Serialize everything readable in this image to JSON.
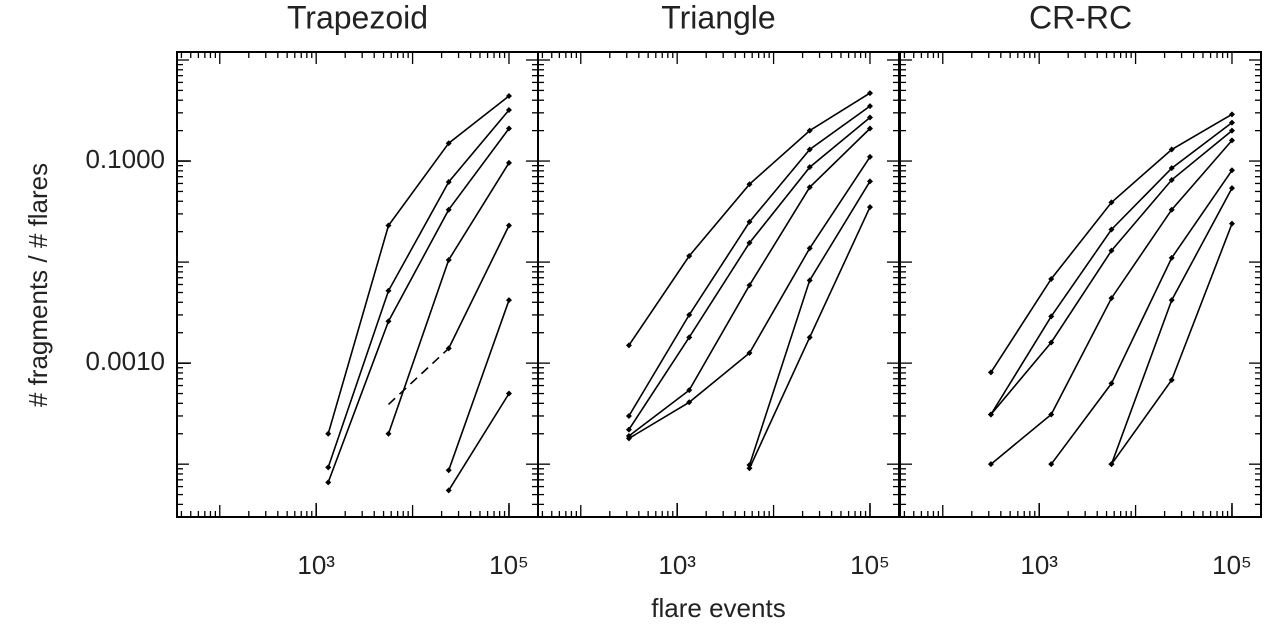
{
  "chart_data": [
    {
      "type": "line",
      "title": "Trapezoid",
      "log_x": true,
      "log_y": true,
      "color": "#000000",
      "ylabel": "# fragments / # flares",
      "xlim": [
        36,
        200000
      ],
      "ylim": [
        3e-05,
        1.2
      ],
      "xticks": [
        {
          "value": 1000,
          "label": "10³"
        },
        {
          "value": 100000,
          "label": "10⁵"
        }
      ],
      "yticks": [
        {
          "value": 0.1,
          "label": "0.1000"
        },
        {
          "value": 0.001,
          "label": "0.0010"
        }
      ],
      "x": [
        1333,
        5623,
        23714,
        100000
      ],
      "series": [
        {
          "values": [
            0.0002,
            0.023,
            0.15,
            0.44
          ]
        },
        {
          "values": [
            9.3e-05,
            0.0052,
            0.062,
            0.32
          ]
        },
        {
          "values": [
            6.6e-05,
            0.0026,
            0.033,
            0.21
          ]
        },
        {
          "values": [
            null,
            0.0002,
            0.0105,
            0.096
          ]
        },
        {
          "values": [
            null,
            0.00039,
            0.0014,
            null
          ],
          "dashed": true
        },
        {
          "values": [
            null,
            null,
            0.0014,
            0.023
          ]
        },
        {
          "values": [
            null,
            null,
            8.7e-05,
            0.0042
          ]
        },
        {
          "values": [
            null,
            null,
            5.5e-05,
            0.0005
          ]
        }
      ]
    },
    {
      "type": "line",
      "title": "Triangle",
      "log_x": true,
      "log_y": true,
      "color": "#000000",
      "xlabel": "flare events",
      "xlim": [
        36,
        200000
      ],
      "ylim": [
        3e-05,
        1.2
      ],
      "xticks": [
        {
          "value": 1000,
          "label": "10³"
        },
        {
          "value": 100000,
          "label": "10⁵"
        }
      ],
      "x": [
        316,
        1333,
        5623,
        23714,
        100000
      ],
      "series": [
        {
          "values": [
            0.0015,
            0.0115,
            0.059,
            0.2,
            0.47
          ]
        },
        {
          "values": [
            0.0003,
            0.003,
            0.025,
            0.13,
            0.35
          ]
        },
        {
          "values": [
            0.00022,
            0.0018,
            0.0155,
            0.087,
            0.27
          ]
        },
        {
          "values": [
            0.00019,
            0.00054,
            0.0059,
            0.055,
            0.21
          ]
        },
        {
          "values": [
            0.00018,
            0.00041,
            0.00126,
            0.0137,
            0.11
          ]
        },
        {
          "values": [
            null,
            null,
            9.8e-05,
            0.0066,
            0.063
          ]
        },
        {
          "values": [
            null,
            null,
            9.1e-05,
            0.0018,
            0.035
          ]
        }
      ]
    },
    {
      "type": "line",
      "title": "CR-RC",
      "log_x": true,
      "log_y": true,
      "color": "#000000",
      "xlim": [
        36,
        200000
      ],
      "ylim": [
        3e-05,
        1.2
      ],
      "xticks": [
        {
          "value": 1000,
          "label": "10³"
        },
        {
          "value": 100000,
          "label": "10⁵"
        }
      ],
      "x": [
        316,
        1333,
        5623,
        23714,
        100000
      ],
      "series": [
        {
          "values": [
            0.00081,
            0.0068,
            0.039,
            0.13,
            0.29
          ]
        },
        {
          "values": [
            0.00031,
            0.0029,
            0.021,
            0.085,
            0.24
          ]
        },
        {
          "values": [
            0.00031,
            0.0016,
            0.013,
            0.065,
            0.2
          ]
        },
        {
          "values": [
            0.0001,
            0.00031,
            0.0044,
            0.033,
            0.16
          ]
        },
        {
          "values": [
            null,
            0.0001,
            0.00063,
            0.011,
            0.081
          ]
        },
        {
          "values": [
            null,
            null,
            0.0001,
            0.0042,
            0.054
          ]
        },
        {
          "values": [
            null,
            null,
            0.0001,
            0.00068,
            0.024
          ]
        }
      ]
    }
  ]
}
